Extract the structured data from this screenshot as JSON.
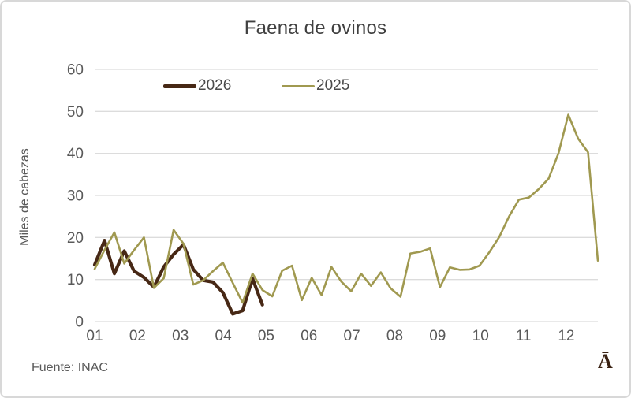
{
  "window": {
    "background": "#ffffff",
    "border_color": "#d8d8d8"
  },
  "chart_data": {
    "type": "line",
    "title": "Faena de ovinos",
    "ylabel": "Miles de cabezas",
    "xlabel": "",
    "x_unit": "week-of-year",
    "x_tick_labels": [
      "01",
      "02",
      "03",
      "04",
      "05",
      "06",
      "07",
      "08",
      "09",
      "10",
      "11",
      "12"
    ],
    "weeks_per_month": 4.345,
    "total_weeks": 52,
    "ylim": [
      0,
      60
    ],
    "y_ticks": [
      0,
      10,
      20,
      30,
      40,
      50,
      60
    ],
    "grid": "horizontal",
    "gridline_color": "#dcdcdc",
    "tick_label_color": "#595959",
    "legend_position": "top-left-inside",
    "series": [
      {
        "name": "2026",
        "color": "#472815",
        "line_width": 4.2,
        "start_week": 1,
        "values": [
          13.5,
          19.3,
          11.4,
          16.8,
          12.0,
          10.5,
          8.2,
          13.0,
          16.0,
          18.3,
          12.4,
          9.8,
          9.4,
          6.9,
          1.8,
          2.6,
          10.2,
          4.0
        ]
      },
      {
        "name": "2025",
        "color": "#a09950",
        "line_width": 2.6,
        "start_week": 1,
        "values": [
          12.5,
          17.0,
          21.2,
          13.8,
          17.0,
          20.0,
          8.0,
          10.3,
          21.8,
          18.5,
          8.8,
          9.8,
          12.0,
          14.0,
          9.2,
          4.5,
          11.4,
          7.5,
          6.0,
          12.1,
          13.3,
          5.1,
          10.4,
          6.3,
          13.0,
          9.5,
          7.2,
          11.4,
          8.5,
          11.7,
          7.9,
          5.9,
          16.2,
          16.6,
          17.4,
          8.2,
          12.9,
          12.3,
          12.4,
          13.3,
          16.5,
          20.1,
          25.0,
          29.0,
          29.5,
          31.5,
          34.0,
          40.0,
          49.2,
          43.5,
          40.3,
          14.5
        ]
      }
    ]
  },
  "footer": {
    "source": "Fuente: INAC",
    "logo_glyph": "Ā"
  }
}
